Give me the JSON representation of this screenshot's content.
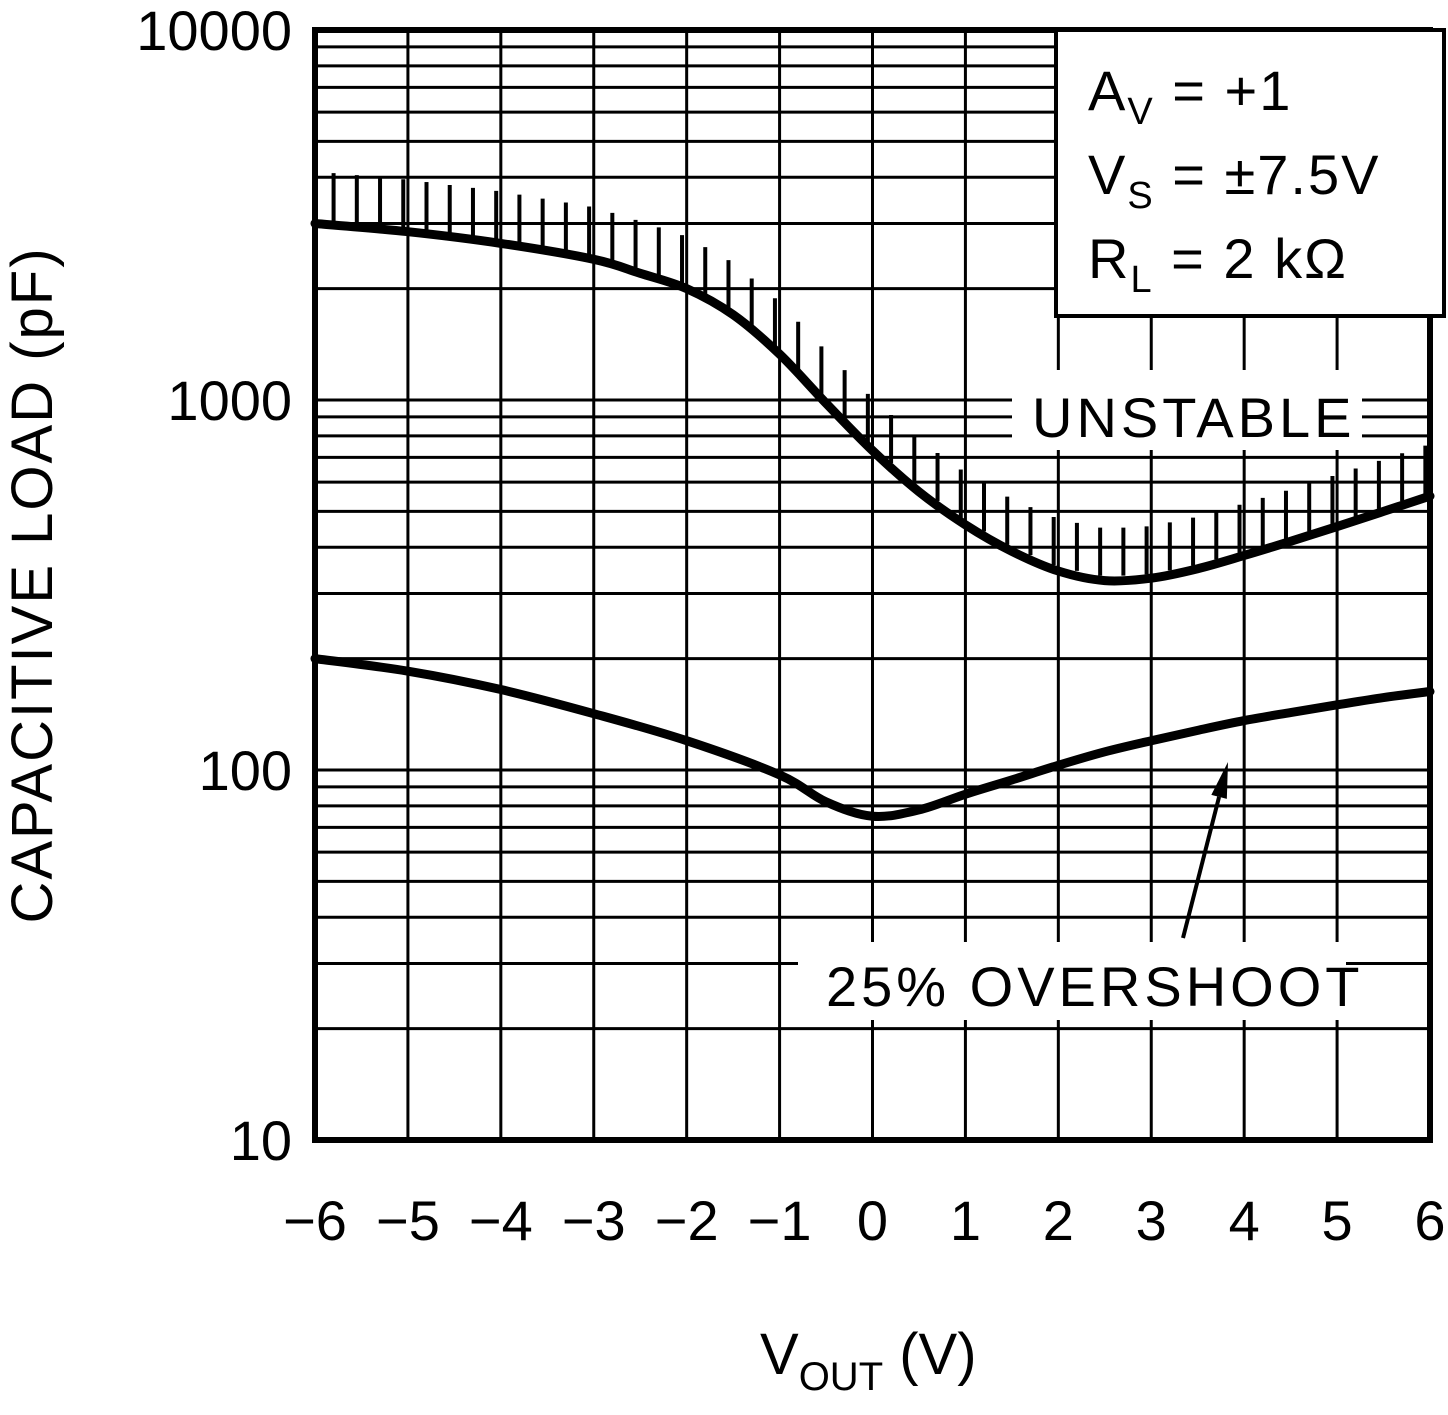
{
  "figure": {
    "background": "#ffffff",
    "ink": "#000000"
  },
  "chart_data": {
    "type": "line",
    "title": "",
    "ylabel": "CAPACITIVE LOAD (pF)",
    "xlabel": {
      "base": "V",
      "sub": "OUT",
      "rest": " (V)"
    },
    "x_axis": {
      "min": -6,
      "max": 6,
      "ticks": [
        -6,
        -5,
        -4,
        -3,
        -2,
        -1,
        0,
        1,
        2,
        3,
        4,
        5,
        6
      ],
      "tick_labels": [
        "−6",
        "−5",
        "−4",
        "−3",
        "−2",
        "−1",
        "0",
        "1",
        "2",
        "3",
        "4",
        "5",
        "6"
      ]
    },
    "y_axis": {
      "scale": "log",
      "min": 10,
      "max": 10000,
      "ticks": [
        10,
        100,
        1000,
        10000
      ],
      "tick_labels": [
        "10",
        "100",
        "1000",
        "10000"
      ]
    },
    "grid": "on-black-major-and-log-minor",
    "legend": "none",
    "series": [
      {
        "name": "unstable-boundary",
        "label": "UNSTABLE",
        "region_hatched_above": true,
        "x": [
          -6,
          -5,
          -4,
          -3,
          -2.5,
          -2,
          -1.5,
          -1,
          -0.5,
          0,
          0.5,
          1,
          1.5,
          2,
          2.5,
          3,
          3.5,
          4,
          4.5,
          5,
          5.5,
          6
        ],
        "y": [
          3000,
          2850,
          2650,
          2400,
          2200,
          2000,
          1700,
          1330,
          980,
          730,
          565,
          460,
          390,
          345,
          325,
          330,
          350,
          380,
          415,
          455,
          500,
          550
        ]
      },
      {
        "name": "overshoot-25pct",
        "label": "25% OVERSHOOT",
        "region_hatched_above": false,
        "x": [
          -6,
          -5,
          -4,
          -3,
          -2,
          -1,
          -0.5,
          0,
          0.5,
          1,
          1.5,
          2,
          2.5,
          3,
          3.5,
          4,
          4.5,
          5,
          5.5,
          6
        ],
        "y": [
          200,
          185,
          165,
          142,
          120,
          97,
          82,
          75,
          78,
          86,
          94,
          103,
          112,
          120,
          128,
          136,
          143,
          150,
          157,
          163
        ]
      }
    ],
    "conditions": [
      {
        "base": "A",
        "sub": "V",
        "rest": " =  +1"
      },
      {
        "base": "V",
        "sub": "S",
        "rest": " =  ±7.5V"
      },
      {
        "base": "R",
        "sub": "L",
        "rest": " =  2 kΩ"
      }
    ]
  }
}
